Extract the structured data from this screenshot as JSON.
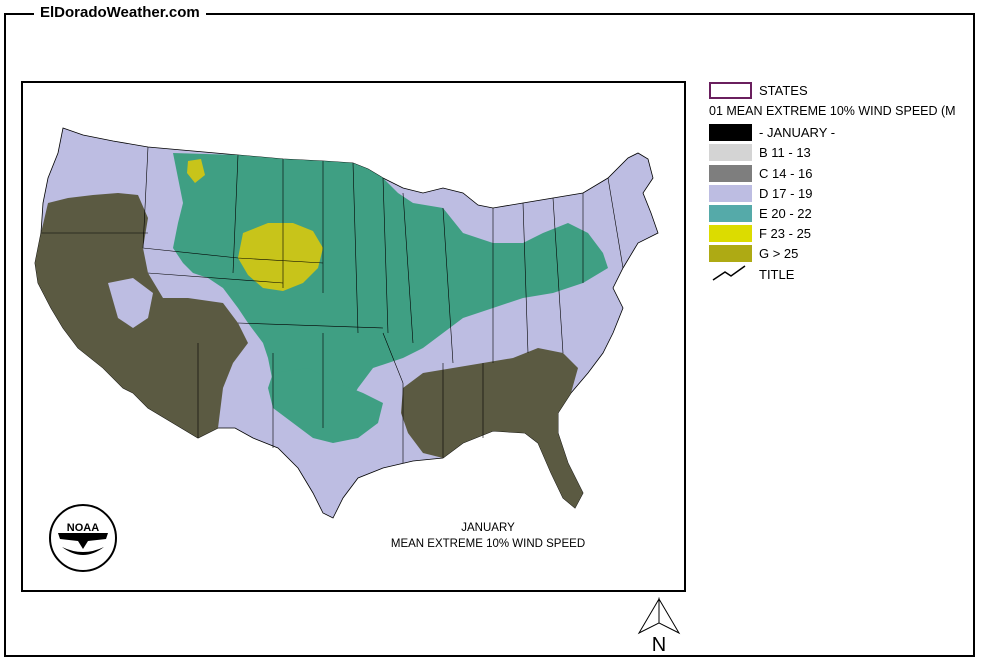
{
  "site": {
    "title": "ElDoradoWeather.com"
  },
  "legend": {
    "states_label": "STATES",
    "variable_name": "01 MEAN EXTREME 10% WIND SPEED (M",
    "classes": [
      {
        "label": "- JANUARY -",
        "color": "#000000"
      },
      {
        "label": "B 11 - 13",
        "color": "#d4d4d4"
      },
      {
        "label": "C 14 - 16",
        "color": "#7e7e7e"
      },
      {
        "label": "D 17 - 19",
        "color": "#bdbde2"
      },
      {
        "label": "E 20 - 22",
        "color": "#55aaa9"
      },
      {
        "label": "F 23 - 25",
        "color": "#dcdc00"
      },
      {
        "label": "G > 25",
        "color": "#aeaa14"
      }
    ],
    "title_label": "TITLE"
  },
  "map": {
    "caption_line1": "JANUARY",
    "caption_line2": "MEAN EXTREME 10% WIND SPEED",
    "region": "Contiguous United States",
    "zone_colors": {
      "background": "#ffffff",
      "states_border": "#000000",
      "desert_southwest": "#5b5a42",
      "southeast": "#5b5a42",
      "plains": "#3f9f83",
      "high_plains_peak": "#c8c41a",
      "default": "#bdbde2"
    }
  },
  "logo": {
    "name": "NOAA",
    "text": "NOAA"
  },
  "north_arrow": {
    "label": "N"
  }
}
